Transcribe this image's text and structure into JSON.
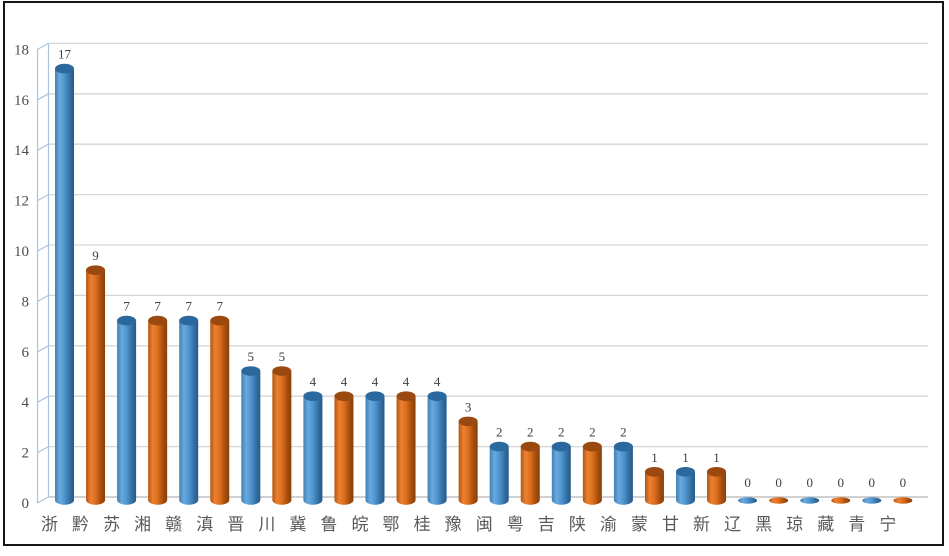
{
  "chart_data": {
    "type": "bar",
    "subtype": "3d-cylinder",
    "title": "",
    "xlabel": "",
    "ylabel": "",
    "categories": [
      "浙",
      "黔",
      "苏",
      "湘",
      "赣",
      "滇",
      "晋",
      "川",
      "冀",
      "鲁",
      "皖",
      "鄂",
      "桂",
      "豫",
      "闽",
      "粤",
      "吉",
      "陕",
      "渝",
      "蒙",
      "甘",
      "新",
      "辽",
      "黑",
      "琼",
      "藏",
      "青",
      "宁"
    ],
    "values": [
      17,
      9,
      7,
      7,
      7,
      7,
      5,
      5,
      4,
      4,
      4,
      4,
      4,
      3,
      2,
      2,
      2,
      2,
      2,
      1,
      1,
      1,
      0,
      0,
      0,
      0,
      0,
      0
    ],
    "point_color_pattern": [
      "blue",
      "orange"
    ],
    "data_labels": [
      17,
      9,
      7,
      7,
      7,
      7,
      5,
      5,
      4,
      4,
      4,
      4,
      4,
      3,
      2,
      2,
      2,
      2,
      2,
      1,
      1,
      1,
      0,
      0,
      0,
      0,
      0,
      0
    ],
    "yticks": [
      0,
      2,
      4,
      6,
      8,
      10,
      12,
      14,
      16,
      18
    ],
    "ylim": [
      0,
      18
    ],
    "grid": true,
    "legend": null
  },
  "theme": {
    "background": "#ffffff",
    "frame_border": "#161616",
    "gridline": "#d6d6d6",
    "baseline": "#c2c2c2",
    "wall_line": "#aac4dd",
    "y_tick_label_color": "#4d4d4d",
    "x_tick_label_color": "#595959",
    "data_label_color": "#3f3f3f",
    "blue": {
      "body_stops": [
        "#4080b5",
        "#69a9dd",
        "#4e95d0",
        "#336d9f",
        "#27598a"
      ],
      "cap": "#2b689e"
    },
    "orange": {
      "body_stops": [
        "#b4560f",
        "#ec8133",
        "#dd6f1d",
        "#a34c0c",
        "#87400a"
      ],
      "cap": "#9a4a10"
    }
  }
}
